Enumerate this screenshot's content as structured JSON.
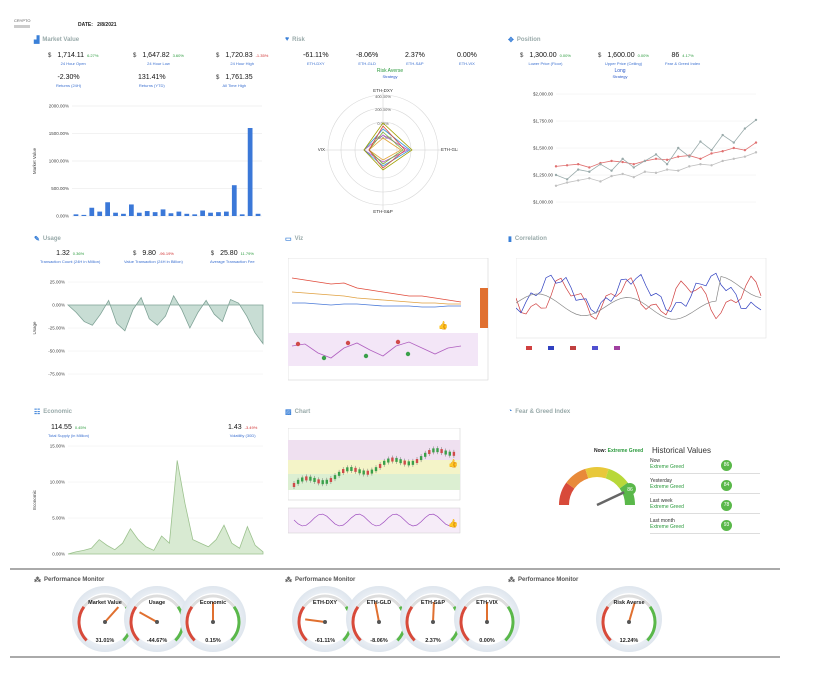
{
  "header": {
    "logo_text": "CRYPTO",
    "date_label": "DATE:",
    "date_value": "2/8/2021"
  },
  "market": {
    "title": "Market Value",
    "stats": [
      {
        "cur": "$",
        "val": "1,714.11",
        "pct": "6.27%",
        "lbl": "24 Hour Open"
      },
      {
        "cur": "$",
        "val": "1,647.82",
        "pct": "3.60%",
        "lbl": "24 Hour Low"
      },
      {
        "cur": "$",
        "val": "1,720.83",
        "pct": "-1.35%",
        "lbl": "24 Hour High"
      }
    ],
    "returns": [
      {
        "val": "-2.30%",
        "lbl": "Returns (24H)"
      },
      {
        "val": "131.41%",
        "lbl": "Returns (YTD)"
      },
      {
        "cur": "$",
        "val": "1,761.35",
        "lbl": "All Time High"
      }
    ],
    "ylabel": "Market Value"
  },
  "risk": {
    "title": "Risk",
    "stats": [
      {
        "val": "-61.11%",
        "lbl": "ETH-DXY"
      },
      {
        "val": "-8.06%",
        "lbl": "ETH-GLD"
      },
      {
        "val": "2.37%",
        "lbl": "ETH-S&P"
      },
      {
        "val": "0.00%",
        "lbl": "ETH-VIX"
      }
    ],
    "status": "Risk Averse",
    "status_lbl": "Strategy",
    "axes": [
      "ETH-DXY",
      "ETH-GLD",
      "ETH-S&P",
      "ETH-VIX"
    ],
    "rings": [
      "400.00%",
      "200.00%",
      "0.00%",
      "-200.00%"
    ]
  },
  "position": {
    "title": "Position",
    "stats": [
      {
        "cur": "$",
        "val": "1,300.00",
        "pct": "0.00%",
        "lbl": "Lower Price (Floor)"
      },
      {
        "cur": "$",
        "val": "1,600.00",
        "pct": "0.00%",
        "lbl": "Upper Price (Ceiling)"
      },
      {
        "val": "86",
        "pct": "4.17%",
        "lbl": "Fear & Greed Index"
      }
    ],
    "status": "Long",
    "status_lbl": "Strategy",
    "yticks": [
      "$2,000.00",
      "$1,750.00",
      "$1,500.00",
      "$1,250.00",
      "$1,000.00"
    ]
  },
  "usage": {
    "title": "Usage",
    "stats": [
      {
        "val": "1.32",
        "pct": "0.36%",
        "lbl": "Transaction Count (24H in Million)"
      },
      {
        "cur": "$",
        "val": "9.80",
        "pct": "-96.19%",
        "lbl": "Value Transaction (24H in Billion)"
      },
      {
        "cur": "$",
        "val": "25.80",
        "pct": "11.79%",
        "lbl": "Average Transaction Fee"
      }
    ],
    "ylabel": "Usage"
  },
  "viz": {
    "title": "Viz"
  },
  "correlation": {
    "title": "Correlation"
  },
  "economic": {
    "title": "Economic",
    "stats": [
      {
        "val": "114.55",
        "pct": "0.45%",
        "lbl": "Total Supply (in Million)"
      },
      {
        "val": "1.43",
        "pct": "-3.49%",
        "lbl": "Volatility (30D)"
      }
    ],
    "ylabel": "Economic"
  },
  "chart": {
    "title": "Chart"
  },
  "fear": {
    "title": "Fear & Greed Index",
    "now_label": "Now:",
    "now_value": "Extreme Greed",
    "gauge_value": "86",
    "hist_title": "Historical Values",
    "rows": [
      {
        "name": "Now",
        "cls": "Extreme Greed",
        "val": "86"
      },
      {
        "name": "Yesterday",
        "cls": "Extreme Greed",
        "val": "84"
      },
      {
        "name": "Last week",
        "cls": "Extreme Greed",
        "val": "78"
      },
      {
        "name": "Last month",
        "cls": "Extreme Greed",
        "val": "93"
      }
    ]
  },
  "perf": {
    "title": "Performance Monitor",
    "gauges": [
      {
        "name": "Market Value",
        "value": "31.01%",
        "level": 0.31
      },
      {
        "name": "Usage",
        "value": "-44.67%",
        "level": -0.45
      },
      {
        "name": "Economic",
        "value": "0.15%",
        "level": 0.0
      },
      {
        "name": "ETH-DXY",
        "value": "-61.11%",
        "level": -0.61
      },
      {
        "name": "ETH-GLD",
        "value": "-8.06%",
        "level": -0.08
      },
      {
        "name": "ETH-S&P",
        "value": "2.37%",
        "level": 0.02
      },
      {
        "name": "ETH-VIX",
        "value": "0.00%",
        "level": 0.0
      },
      {
        "name": "Risk Averse",
        "value": "12.24%",
        "level": 0.12
      }
    ]
  },
  "chart_data": [
    {
      "type": "bar",
      "ylabel": "Market Value",
      "yticks": [
        "2000.00%",
        "1500.00%",
        "1000.00%",
        "500.00%",
        "0.00%"
      ],
      "ylim": [
        0,
        2000
      ],
      "values": [
        30,
        20,
        150,
        80,
        250,
        60,
        40,
        210,
        60,
        90,
        70,
        120,
        50,
        80,
        40,
        30,
        100,
        60,
        70,
        80,
        560,
        30,
        1600,
        40
      ]
    },
    {
      "type": "area",
      "ylabel": "Usage",
      "yticks": [
        "25.00%",
        "0.00%",
        "-25.00%",
        "-50.00%",
        "-75.00%"
      ],
      "ylim": [
        -75,
        25
      ]
    },
    {
      "type": "area",
      "ylabel": "Economic",
      "yticks": [
        "15.00%",
        "10.00%",
        "5.00%",
        "0.00%"
      ],
      "ylim": [
        0,
        15
      ]
    }
  ]
}
